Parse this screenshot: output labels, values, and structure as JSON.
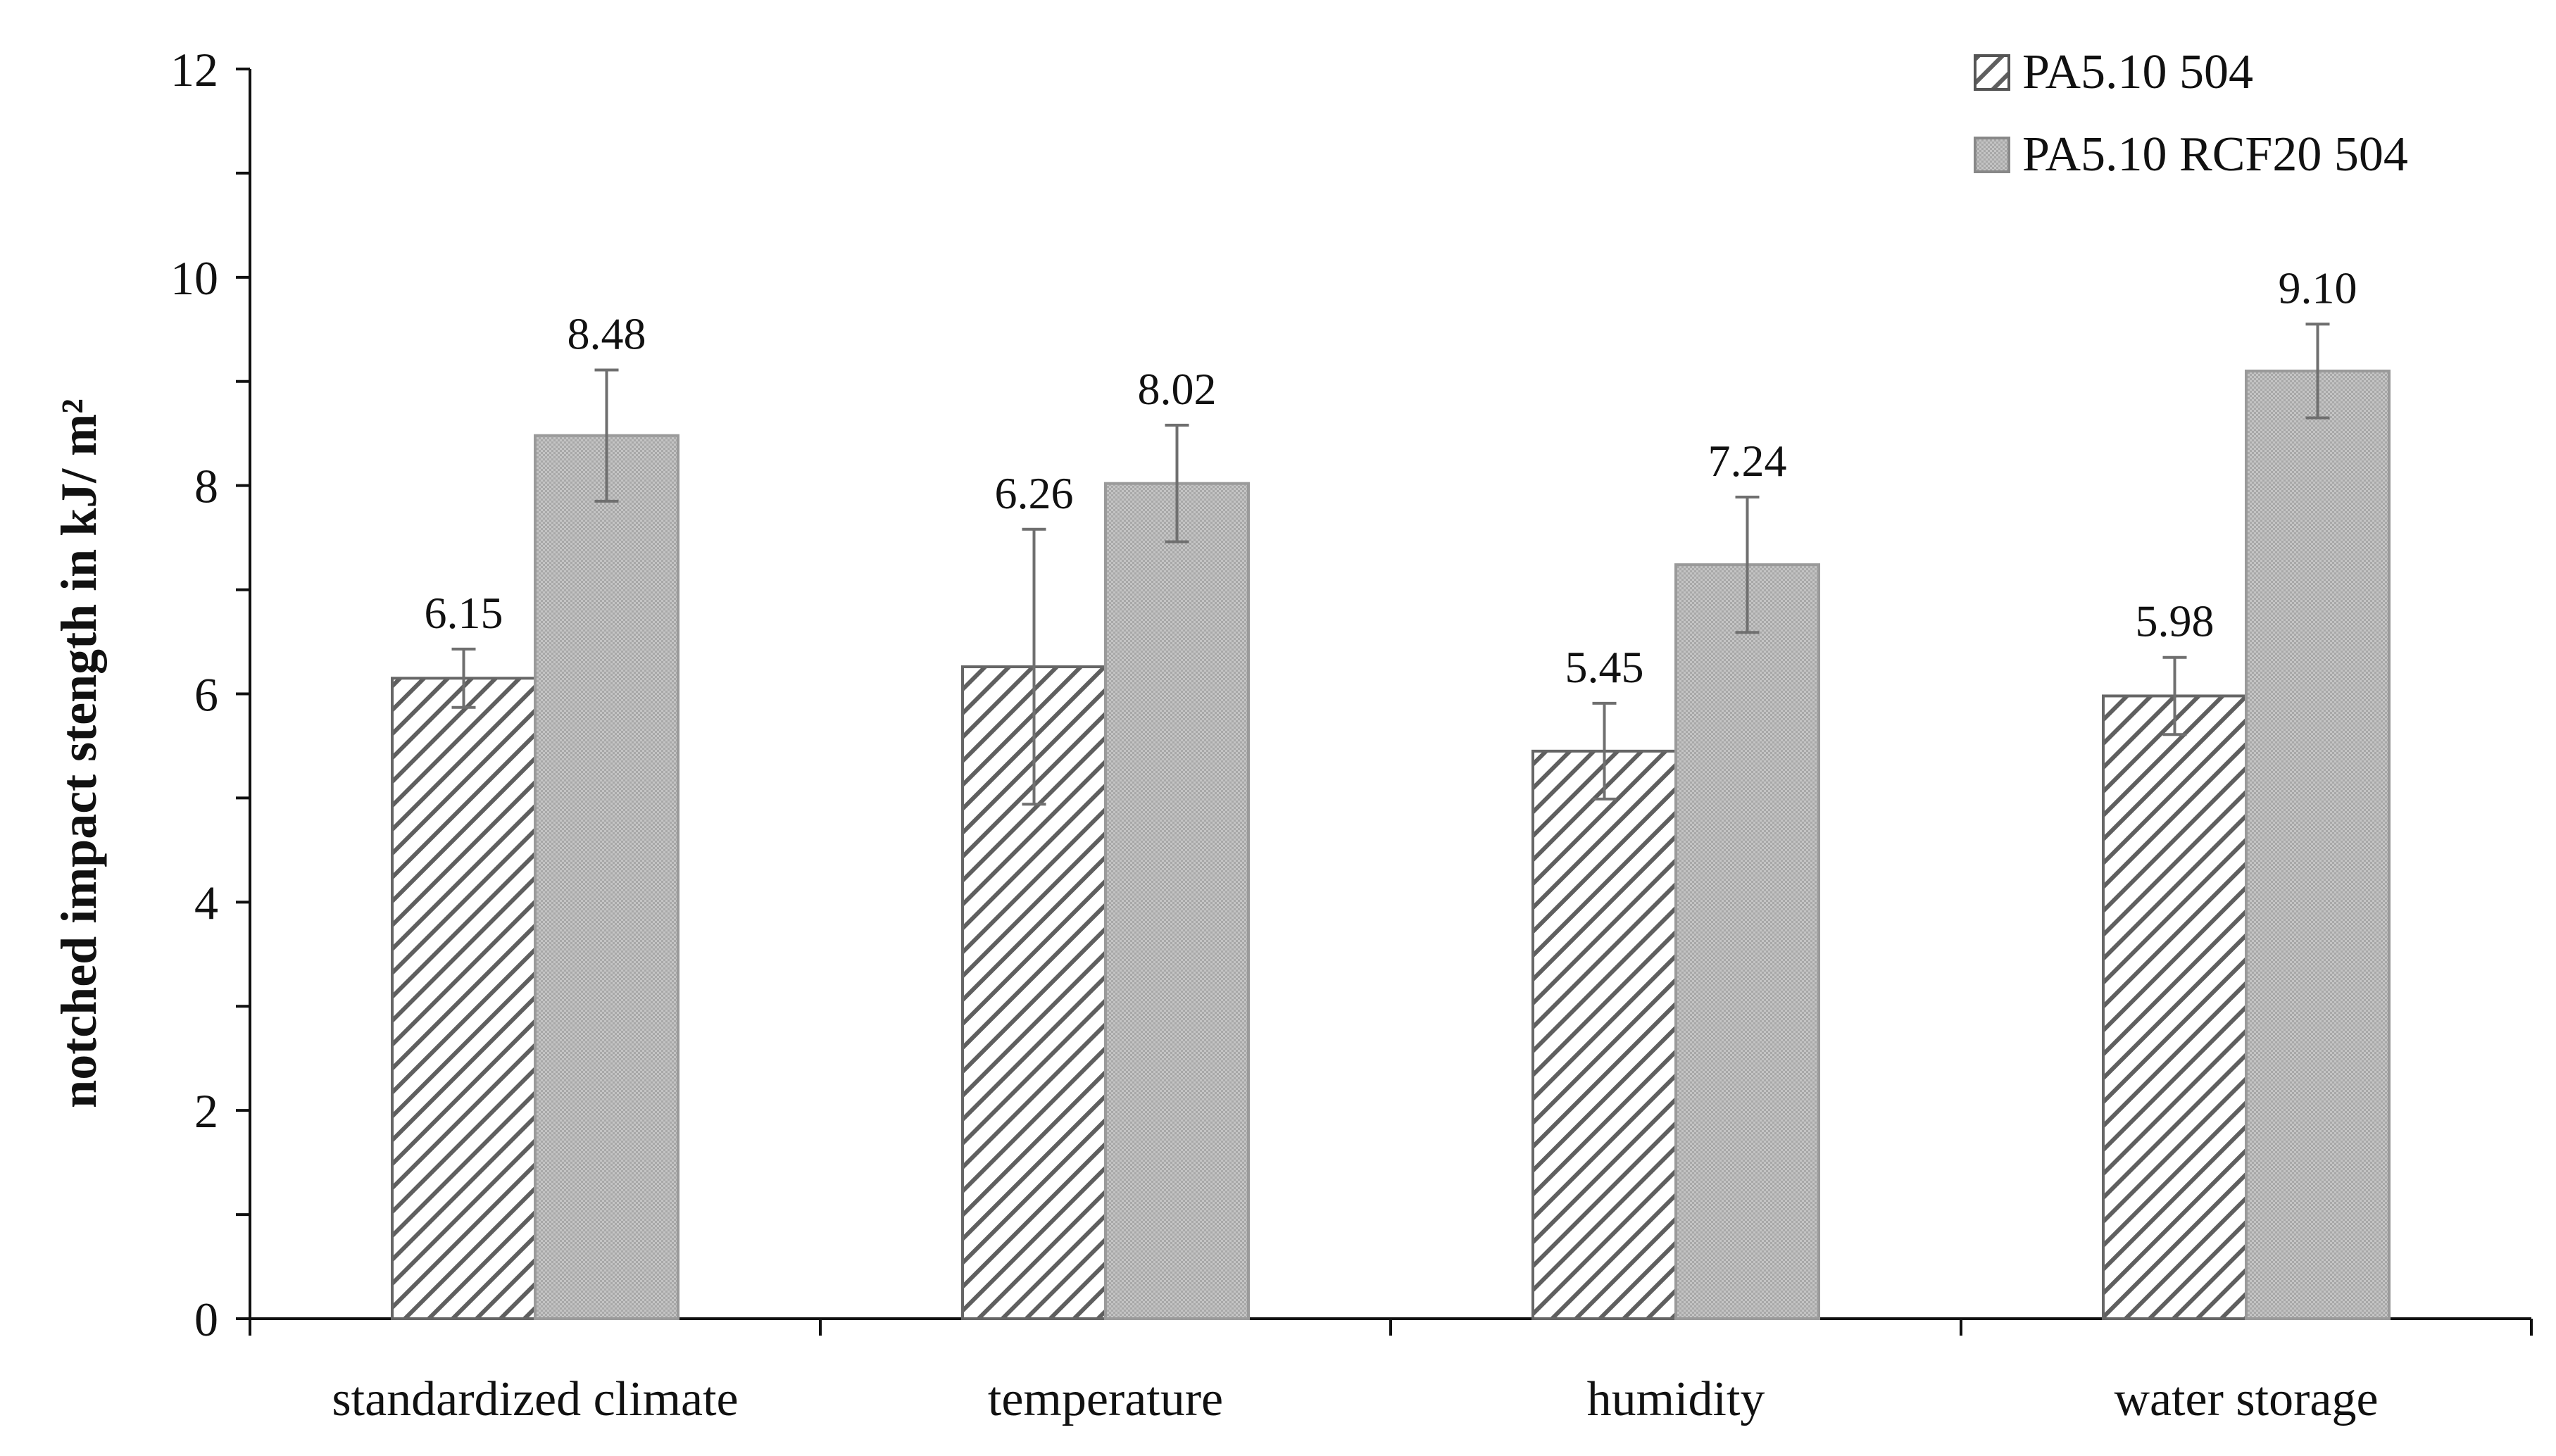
{
  "chart_data": {
    "type": "bar",
    "title": "",
    "xlabel": "",
    "ylabel": "notched impact stength in kJ/ m²",
    "ylim": [
      0,
      12
    ],
    "yticks": [
      0,
      2,
      4,
      6,
      8,
      10,
      12
    ],
    "yticks_labels": [
      "0",
      "2",
      "4",
      "6",
      "8",
      "10",
      "12"
    ],
    "categories": [
      "standardized climate",
      "temperature",
      "humidity",
      "water storage"
    ],
    "series": [
      {
        "name": "PA5.10 504",
        "pattern": "diagonal-hatch",
        "color": "#6f6f6f",
        "values": [
          6.15,
          6.26,
          5.45,
          5.98
        ],
        "value_labels": [
          "6.15",
          "6.26",
          "5.45",
          "5.98"
        ],
        "error": [
          0.28,
          1.32,
          0.46,
          0.37
        ]
      },
      {
        "name": "PA5.10 RCF20 504",
        "pattern": "dotted-gray",
        "color": "#bdbdbd",
        "values": [
          8.48,
          8.02,
          7.24,
          9.1
        ],
        "value_labels": [
          "8.48",
          "8.02",
          "7.24",
          "9.10"
        ],
        "error": [
          0.63,
          0.56,
          0.65,
          0.45
        ]
      }
    ],
    "legend": "top-right",
    "grid": false
  }
}
